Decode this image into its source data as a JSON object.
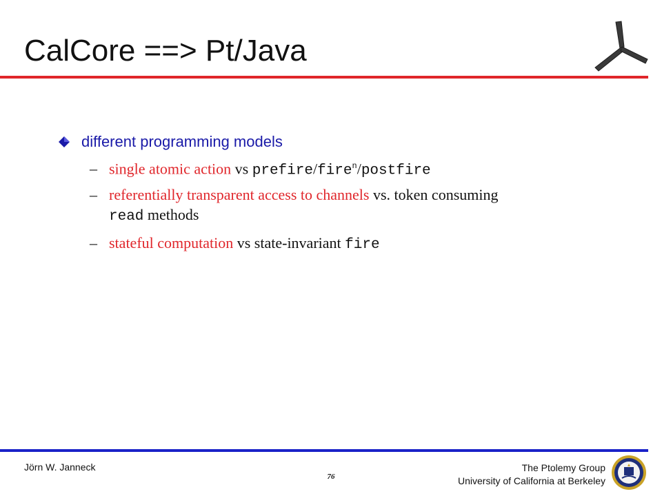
{
  "slide": {
    "title": "CalCore ==> Pt/Java",
    "bullet": {
      "icon": "diamond-bullet-icon",
      "text": "different programming models"
    },
    "subitems": [
      {
        "dash": "–",
        "red": "single atomic action",
        "rest": " vs ",
        "mono1": "prefire",
        "sep1": "/",
        "mono2": "fire",
        "sup": "n",
        "sep2": "/",
        "mono3": "postfire"
      },
      {
        "dash": "–",
        "red": "referentially transparent access to channels",
        "rest": " vs. token consuming",
        "mono": "read",
        "after": " methods"
      },
      {
        "dash": "–",
        "red": "stateful computation",
        "rest": " vs state-invariant ",
        "mono": "fire"
      }
    ]
  },
  "footer": {
    "author": "Jörn W. Janneck",
    "page": "76",
    "group": "The Ptolemy Group",
    "university": "University of California at Berkeley"
  },
  "colors": {
    "accent_red": "#e0262b",
    "bullet_blue": "#1a1aa8",
    "footer_rule_blue": "#1a22c8"
  },
  "icons": {
    "logo": "ptolemy-logo-icon",
    "seal": "uc-berkeley-seal-icon"
  }
}
